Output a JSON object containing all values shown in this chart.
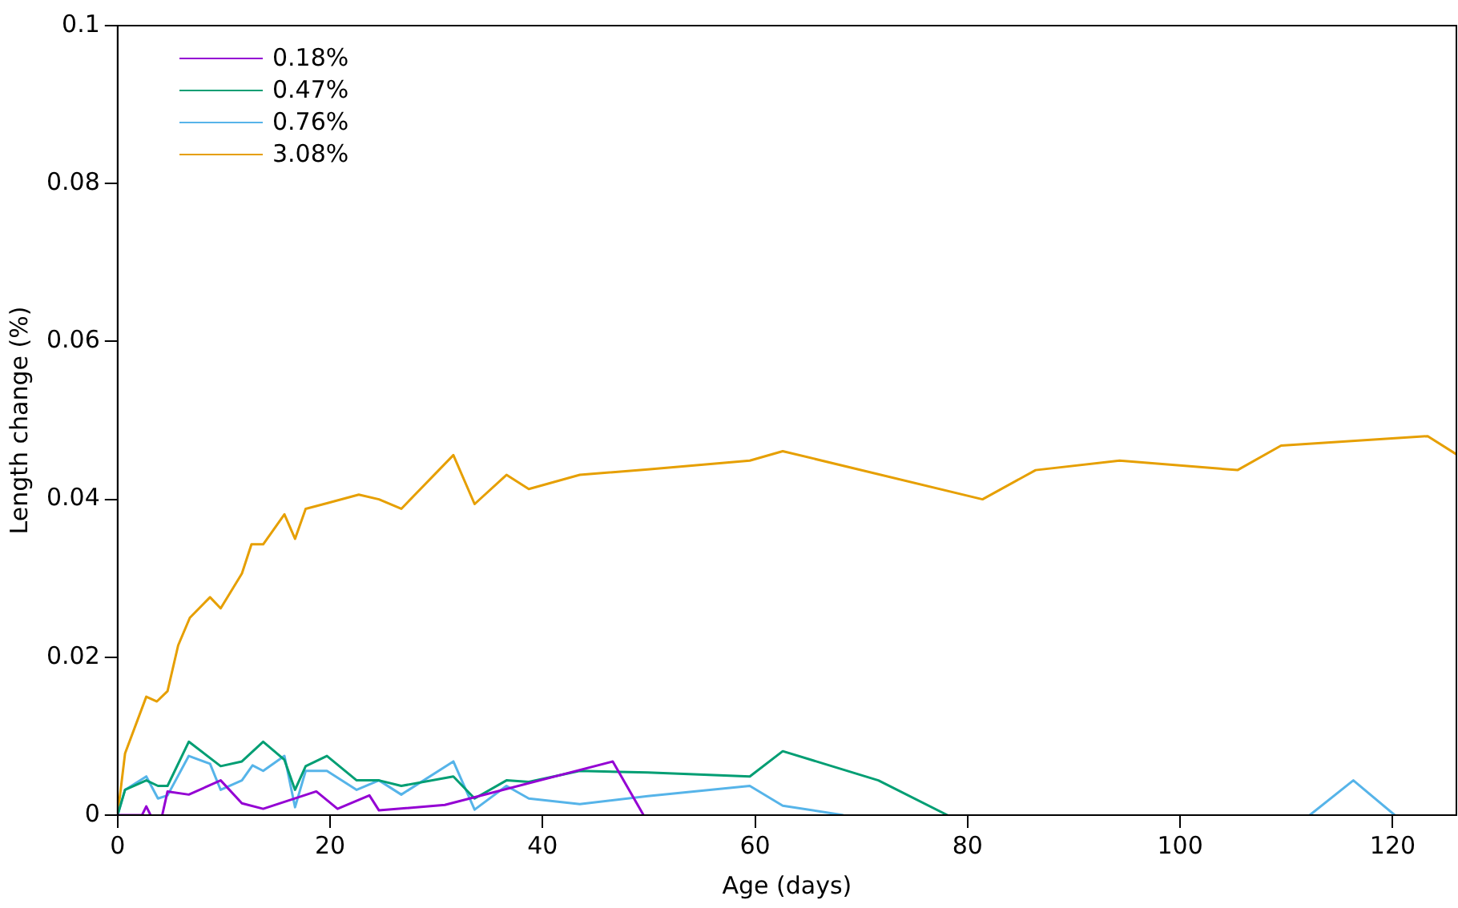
{
  "chart_data": {
    "type": "line",
    "xlabel": "Age (days)",
    "ylabel": "Length change (%)",
    "xlim": [
      0,
      126
    ],
    "xticks": [
      0,
      20,
      40,
      60,
      80,
      100,
      120
    ],
    "ylim": [
      0,
      0.1
    ],
    "yticks": [
      0,
      0.02,
      0.04,
      0.06,
      0.08,
      0.1
    ],
    "grid": false,
    "legend": "top left",
    "marker": "none",
    "line_style": "solid",
    "series": [
      {
        "name": "0.18%",
        "color": "#9400d3",
        "x": [
          0,
          2.3,
          2.7,
          3.1,
          3.6,
          4.2,
          4.7,
          6.7,
          9.7,
          11.7,
          13.7,
          18.7,
          20.7,
          23.7,
          24.6,
          30.8,
          46.6,
          49.5
        ],
        "values": [
          0,
          0,
          0.0011,
          0,
          null,
          0,
          0.003,
          0.0026,
          0.0044,
          0.0015,
          0.0008,
          0.003,
          0.0008,
          0.0025,
          0.0006,
          0.0013,
          0.0068,
          0
        ]
      },
      {
        "name": "0.47%",
        "color": "#009e73",
        "x": [
          0,
          0.7,
          2.7,
          3.8,
          4.7,
          6.7,
          9.7,
          11.7,
          13.7,
          15.7,
          16.7,
          17.7,
          19.7,
          22.5,
          24.6,
          26.7,
          31.6,
          33.6,
          36.6,
          38.7,
          43.5,
          49.9,
          59.5,
          62.6,
          71.6,
          78.1
        ],
        "values": [
          0,
          0.0032,
          0.0044,
          0.0037,
          0.0037,
          0.0093,
          0.0062,
          0.0068,
          0.0093,
          0.007,
          0.0032,
          0.0062,
          0.0075,
          0.0044,
          0.0044,
          0.0037,
          0.0049,
          0.0021,
          0.0044,
          0.0042,
          0.0056,
          0.0054,
          0.0049,
          0.0081,
          0.0044,
          0
        ]
      },
      {
        "name": "0.76%",
        "color": "#56b4e9",
        "x": [
          0,
          0.7,
          2.7,
          3.8,
          4.7,
          6.7,
          8.7,
          9.7,
          11.7,
          12.7,
          13.7,
          15.7,
          16.7,
          17.7,
          19.7,
          22.5,
          24.6,
          26.7,
          31.6,
          33.6,
          36.6,
          38.7,
          43.5,
          49.9,
          59.5,
          62.6,
          68.3,
          90,
          112.2,
          116.3,
          120.2
        ],
        "values": [
          0,
          0.0032,
          0.0049,
          0.0021,
          0.0025,
          0.0075,
          0.0065,
          0.0032,
          0.0044,
          0.0063,
          0.0056,
          0.0075,
          0.001,
          0.0056,
          0.0056,
          0.0032,
          0.0044,
          0.0026,
          0.0068,
          0.0007,
          0.0037,
          0.0021,
          0.0014,
          0.0024,
          0.0037,
          0.0012,
          0,
          null,
          0,
          0.0044,
          0
        ]
      },
      {
        "name": "3.08%",
        "color": "#e69f00",
        "x": [
          0,
          0.7,
          2.7,
          3.7,
          4.7,
          5.7,
          6.8,
          8.7,
          9.7,
          11.7,
          12.6,
          13.7,
          15.7,
          16.7,
          17.7,
          19.7,
          22.7,
          24.6,
          26.7,
          31.6,
          33.6,
          36.6,
          38.7,
          43.5,
          49.9,
          59.5,
          62.6,
          81.4,
          86.4,
          94.3,
          105.4,
          109.5,
          123.3,
          126
        ],
        "values": [
          0,
          0.0078,
          0.015,
          0.0144,
          0.0157,
          0.0215,
          0.025,
          0.0276,
          0.0262,
          0.0306,
          0.0343,
          0.0343,
          0.0381,
          0.035,
          0.0388,
          0.0395,
          0.0406,
          0.04,
          0.0388,
          0.0456,
          0.0394,
          0.0431,
          0.0413,
          0.0431,
          0.0438,
          0.0449,
          0.0461,
          0.04,
          0.0437,
          0.0449,
          0.0437,
          0.0468,
          0.048,
          0.0457
        ]
      }
    ]
  }
}
